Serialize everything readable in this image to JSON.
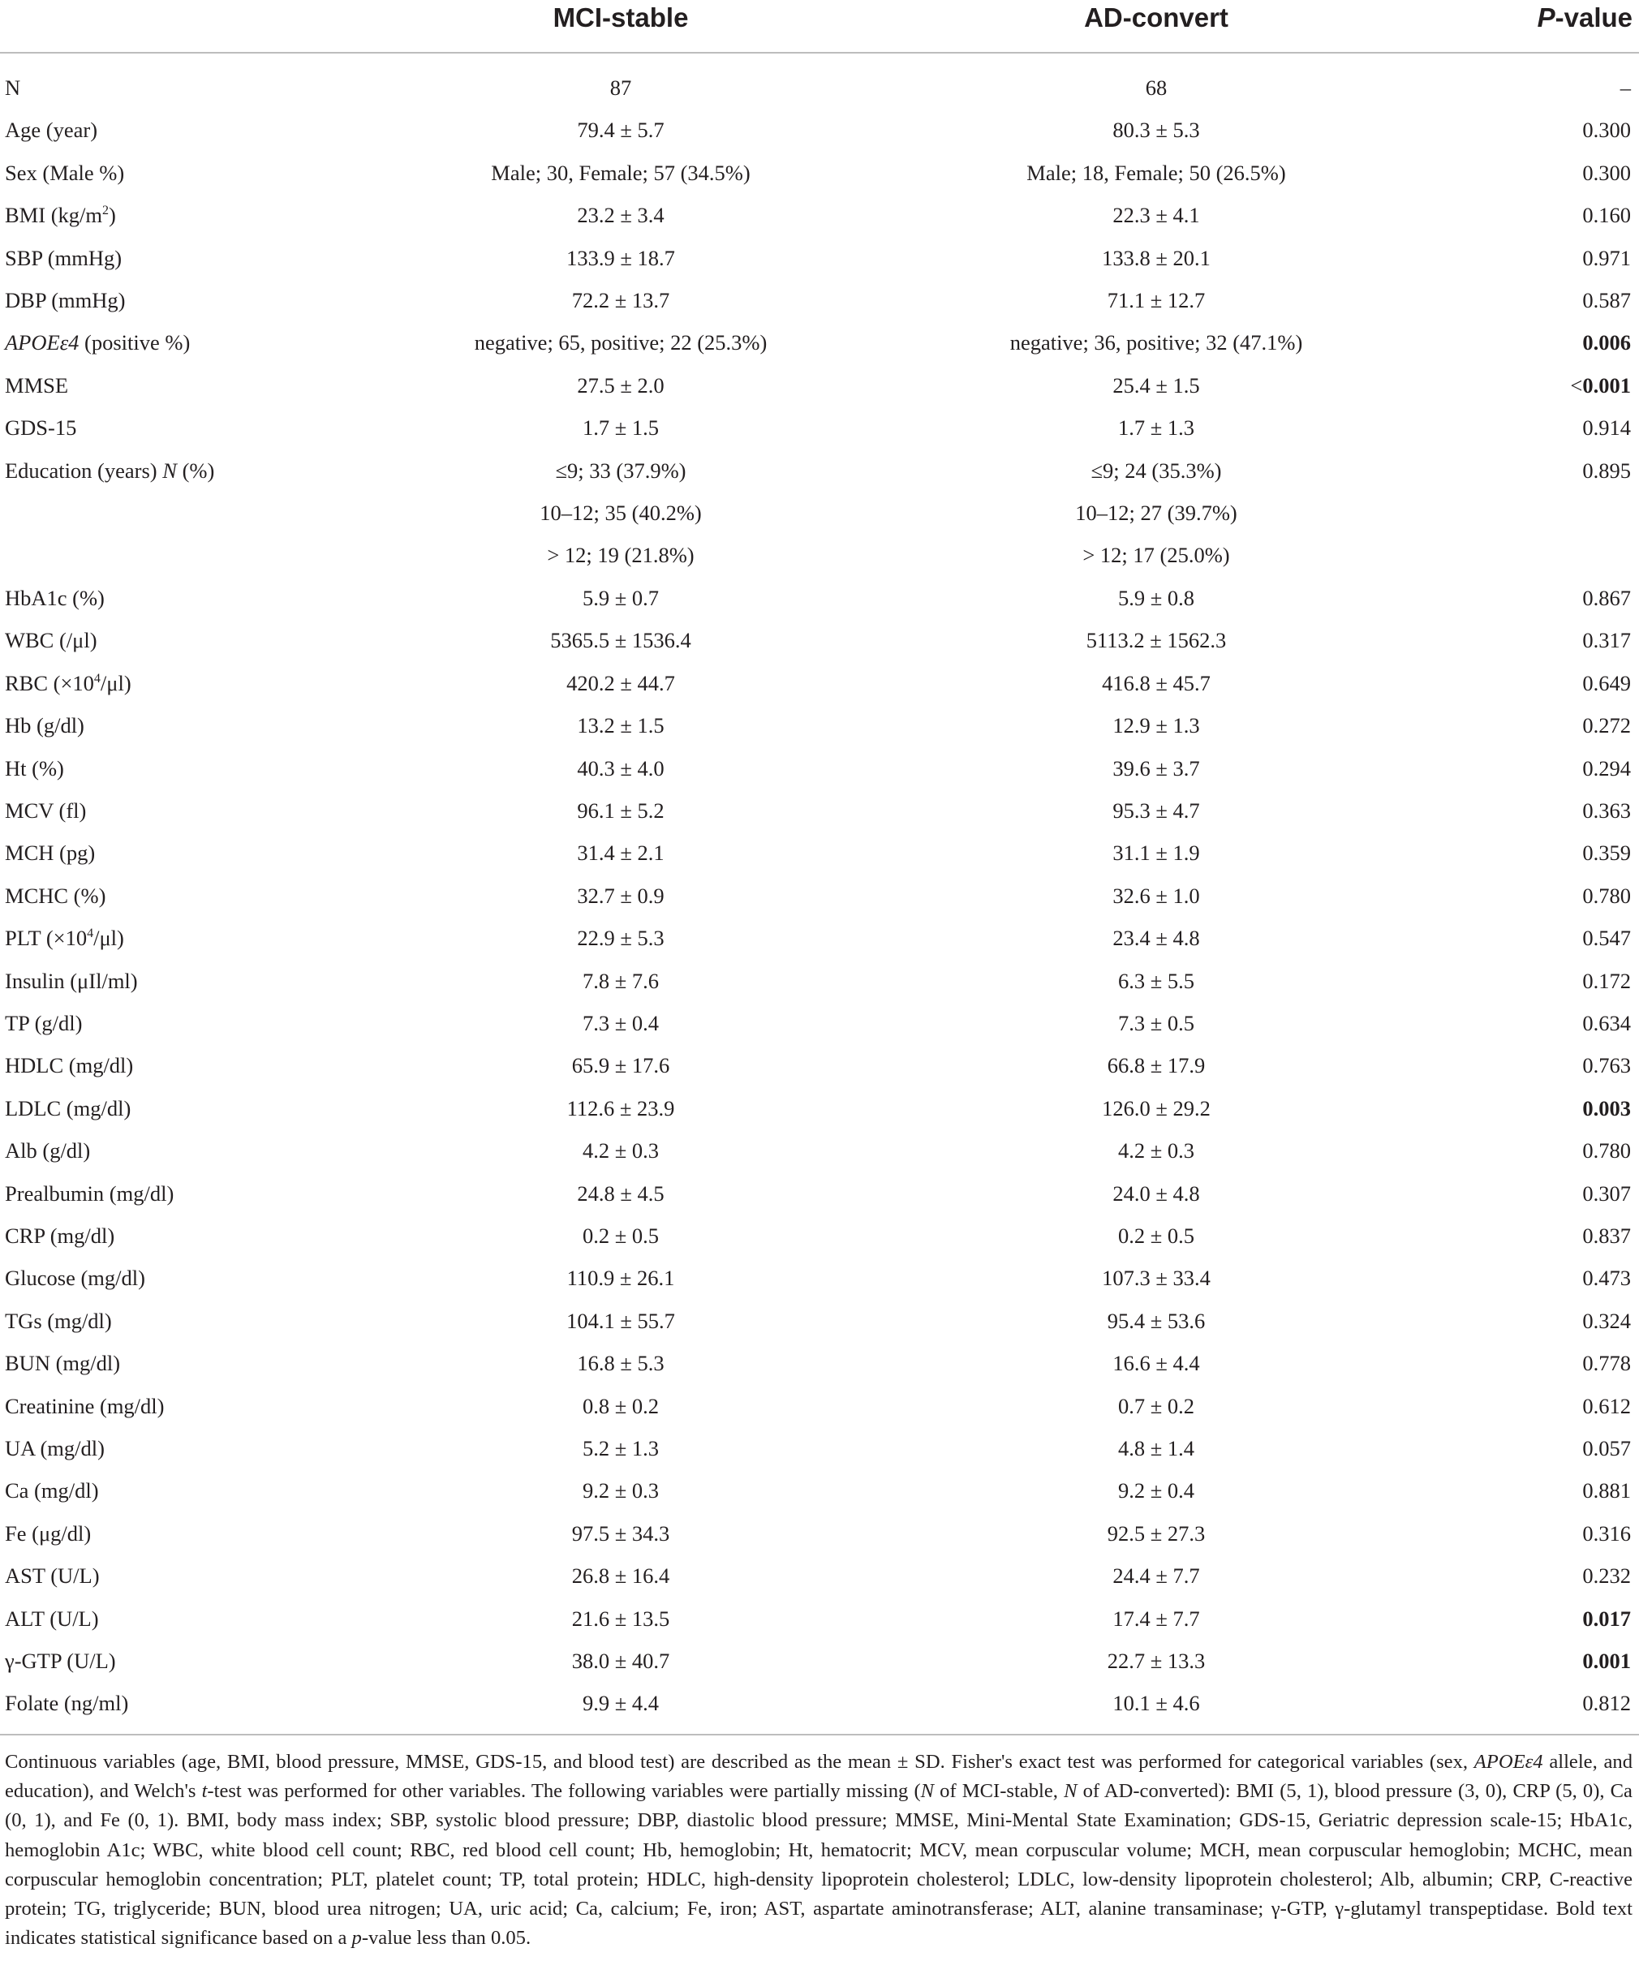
{
  "header": {
    "col1": "MCI-stable",
    "col2": "AD-convert",
    "col3_italic": "P",
    "col3_rest": "-value"
  },
  "rows": [
    {
      "label": "N",
      "mci": "87",
      "ad": "68",
      "p": "–"
    },
    {
      "label": "Age (year)",
      "mci": "79.4 ± 5.7",
      "ad": "80.3 ± 5.3",
      "p": "0.300"
    },
    {
      "label": "Sex (Male %)",
      "mci": "Male; 30, Female; 57 (34.5%)",
      "ad": "Male; 18, Female; 50 (26.5%)",
      "p": "0.300"
    },
    {
      "label": "BMI (kg/m",
      "label_sup": "2",
      "label_after": ")",
      "mci": "23.2 ± 3.4",
      "ad": "22.3 ± 4.1",
      "p": "0.160"
    },
    {
      "label": "SBP (mmHg)",
      "mci": "133.9 ± 18.7",
      "ad": "133.8 ± 20.1",
      "p": "0.971"
    },
    {
      "label": "DBP (mmHg)",
      "mci": "72.2 ± 13.7",
      "ad": "71.1 ± 12.7",
      "p": "0.587"
    },
    {
      "label_italic": "APOEε4",
      "label": " (positive %)",
      "mci": "negative; 65, positive; 22 (25.3%)",
      "ad": "negative; 36, positive; 32 (47.1%)",
      "p": "0.006",
      "p_bold": true
    },
    {
      "label": "MMSE",
      "mci": "27.5 ± 2.0",
      "ad": "25.4 ± 1.5",
      "p_prefix": "<",
      "p": "0.001",
      "p_bold": true
    },
    {
      "label": "GDS-15",
      "mci": "1.7 ± 1.5",
      "ad": "1.7 ± 1.3",
      "p": "0.914"
    },
    {
      "label": "Education (years) ",
      "label_italic_after": "N",
      "label_after": " (%)",
      "mci": "≤9; 33 (37.9%)",
      "ad": "≤9; 24 (35.3%)",
      "p": "0.895"
    },
    {
      "label": "",
      "mci": "10–12; 35 (40.2%)",
      "ad": "10–12; 27 (39.7%)",
      "p": ""
    },
    {
      "label": "",
      "mci": "> 12; 19 (21.8%)",
      "ad": "> 12; 17 (25.0%)",
      "p": ""
    },
    {
      "label": "HbA1c (%)",
      "mci": "5.9 ± 0.7",
      "ad": "5.9 ± 0.8",
      "p": "0.867"
    },
    {
      "label": "WBC (/μl)",
      "mci": "5365.5 ± 1536.4",
      "ad": "5113.2 ± 1562.3",
      "p": "0.317"
    },
    {
      "label": "RBC (×10",
      "label_sup": "4",
      "label_after": "/μl)",
      "mci": "420.2 ± 44.7",
      "ad": "416.8 ± 45.7",
      "p": "0.649"
    },
    {
      "label": "Hb (g/dl)",
      "mci": "13.2 ± 1.5",
      "ad": "12.9 ± 1.3",
      "p": "0.272"
    },
    {
      "label": "Ht (%)",
      "mci": "40.3 ± 4.0",
      "ad": "39.6 ± 3.7",
      "p": "0.294"
    },
    {
      "label": "MCV (fl)",
      "mci": "96.1 ± 5.2",
      "ad": "95.3 ± 4.7",
      "p": "0.363"
    },
    {
      "label": "MCH (pg)",
      "mci": "31.4 ± 2.1",
      "ad": "31.1 ± 1.9",
      "p": "0.359"
    },
    {
      "label": "MCHC (%)",
      "mci": "32.7 ± 0.9",
      "ad": "32.6 ± 1.0",
      "p": "0.780"
    },
    {
      "label": "PLT (×10",
      "label_sup": "4",
      "label_after": "/μl)",
      "mci": "22.9 ± 5.3",
      "ad": "23.4 ± 4.8",
      "p": "0.547"
    },
    {
      "label": "Insulin (μIl/ml)",
      "mci": "7.8 ± 7.6",
      "ad": "6.3 ± 5.5",
      "p": "0.172"
    },
    {
      "label": "TP (g/dl)",
      "mci": "7.3 ± 0.4",
      "ad": "7.3 ± 0.5",
      "p": "0.634"
    },
    {
      "label": "HDLC (mg/dl)",
      "mci": "65.9 ± 17.6",
      "ad": "66.8 ± 17.9",
      "p": "0.763"
    },
    {
      "label": "LDLC (mg/dl)",
      "mci": "112.6 ± 23.9",
      "ad": "126.0 ± 29.2",
      "p": "0.003",
      "p_bold": true
    },
    {
      "label": "Alb (g/dl)",
      "mci": "4.2 ± 0.3",
      "ad": "4.2 ± 0.3",
      "p": "0.780"
    },
    {
      "label": "Prealbumin (mg/dl)",
      "mci": "24.8 ± 4.5",
      "ad": "24.0 ± 4.8",
      "p": "0.307"
    },
    {
      "label": "CRP (mg/dl)",
      "mci": "0.2 ± 0.5",
      "ad": "0.2 ± 0.5",
      "p": "0.837"
    },
    {
      "label": "Glucose (mg/dl)",
      "mci": "110.9 ± 26.1",
      "ad": "107.3 ± 33.4",
      "p": "0.473"
    },
    {
      "label": "TGs (mg/dl)",
      "mci": "104.1 ± 55.7",
      "ad": "95.4 ± 53.6",
      "p": "0.324"
    },
    {
      "label": "BUN (mg/dl)",
      "mci": "16.8 ± 5.3",
      "ad": "16.6 ± 4.4",
      "p": "0.778"
    },
    {
      "label": "Creatinine (mg/dl)",
      "mci": "0.8 ± 0.2",
      "ad": "0.7 ± 0.2",
      "p": "0.612"
    },
    {
      "label": "UA (mg/dl)",
      "mci": "5.2 ± 1.3",
      "ad": "4.8 ± 1.4",
      "p": "0.057"
    },
    {
      "label": "Ca (mg/dl)",
      "mci": "9.2 ± 0.3",
      "ad": "9.2 ± 0.4",
      "p": "0.881"
    },
    {
      "label": "Fe (μg/dl)",
      "mci": "97.5 ± 34.3",
      "ad": "92.5 ± 27.3",
      "p": "0.316"
    },
    {
      "label": "AST (U/L)",
      "mci": "26.8 ± 16.4",
      "ad": "24.4 ± 7.7",
      "p": "0.232"
    },
    {
      "label": "ALT (U/L)",
      "mci": "21.6 ± 13.5",
      "ad": "17.4 ± 7.7",
      "p": "0.017",
      "p_bold": true
    },
    {
      "label": "γ-GTP (U/L)",
      "mci": "38.0 ± 40.7",
      "ad": "22.7 ± 13.3",
      "p": "0.001",
      "p_bold": true
    },
    {
      "label": "Folate (ng/ml)",
      "mci": "9.9 ± 4.4",
      "ad": "10.1 ± 4.6",
      "p": "0.812"
    }
  ],
  "footnote": {
    "s1": "Continuous variables (age, BMI, blood pressure, MMSE, GDS-15, and blood test) are described as the mean ± SD. Fisher's exact test was performed for categorical variables (sex, ",
    "s1_it": "APOEε4",
    "s2": " allele, and education), and Welch's ",
    "s2_it": "t",
    "s3": "-test was performed for other variables. The following variables were partially missing (",
    "s3_it": "N",
    "s4": " of MCI-stable, ",
    "s4_it": "N",
    "s5": " of AD-converted): BMI (5, 1), blood pressure (3, 0), CRP (5, 0), Ca (0, 1), and Fe (0, 1). BMI, body mass index; SBP, systolic blood pressure; DBP, diastolic blood pressure; MMSE, Mini-Mental State Examination; GDS-15, Geriatric depression scale-15; HbA1c, hemoglobin A1c; WBC, white blood cell count; RBC, red blood cell count; Hb, hemoglobin; Ht, hematocrit; MCV, mean corpuscular volume; MCH, mean corpuscular hemoglobin; MCHC, mean corpuscular hemoglobin concentration; PLT, platelet count; TP, total protein; HDLC, high-density lipoprotein cholesterol; LDLC, low-density lipoprotein cholesterol; Alb, albumin; CRP, C-reactive protein; TG, triglyceride; BUN, blood urea nitrogen; UA, uric acid; Ca, calcium; Fe, iron; AST, aspartate aminotransferase; ALT, alanine transaminase; γ-GTP, γ-glutamyl transpeptidase. Bold text indicates statistical significance based on a ",
    "s5_it": "p",
    "s6": "-value less than 0.05."
  }
}
